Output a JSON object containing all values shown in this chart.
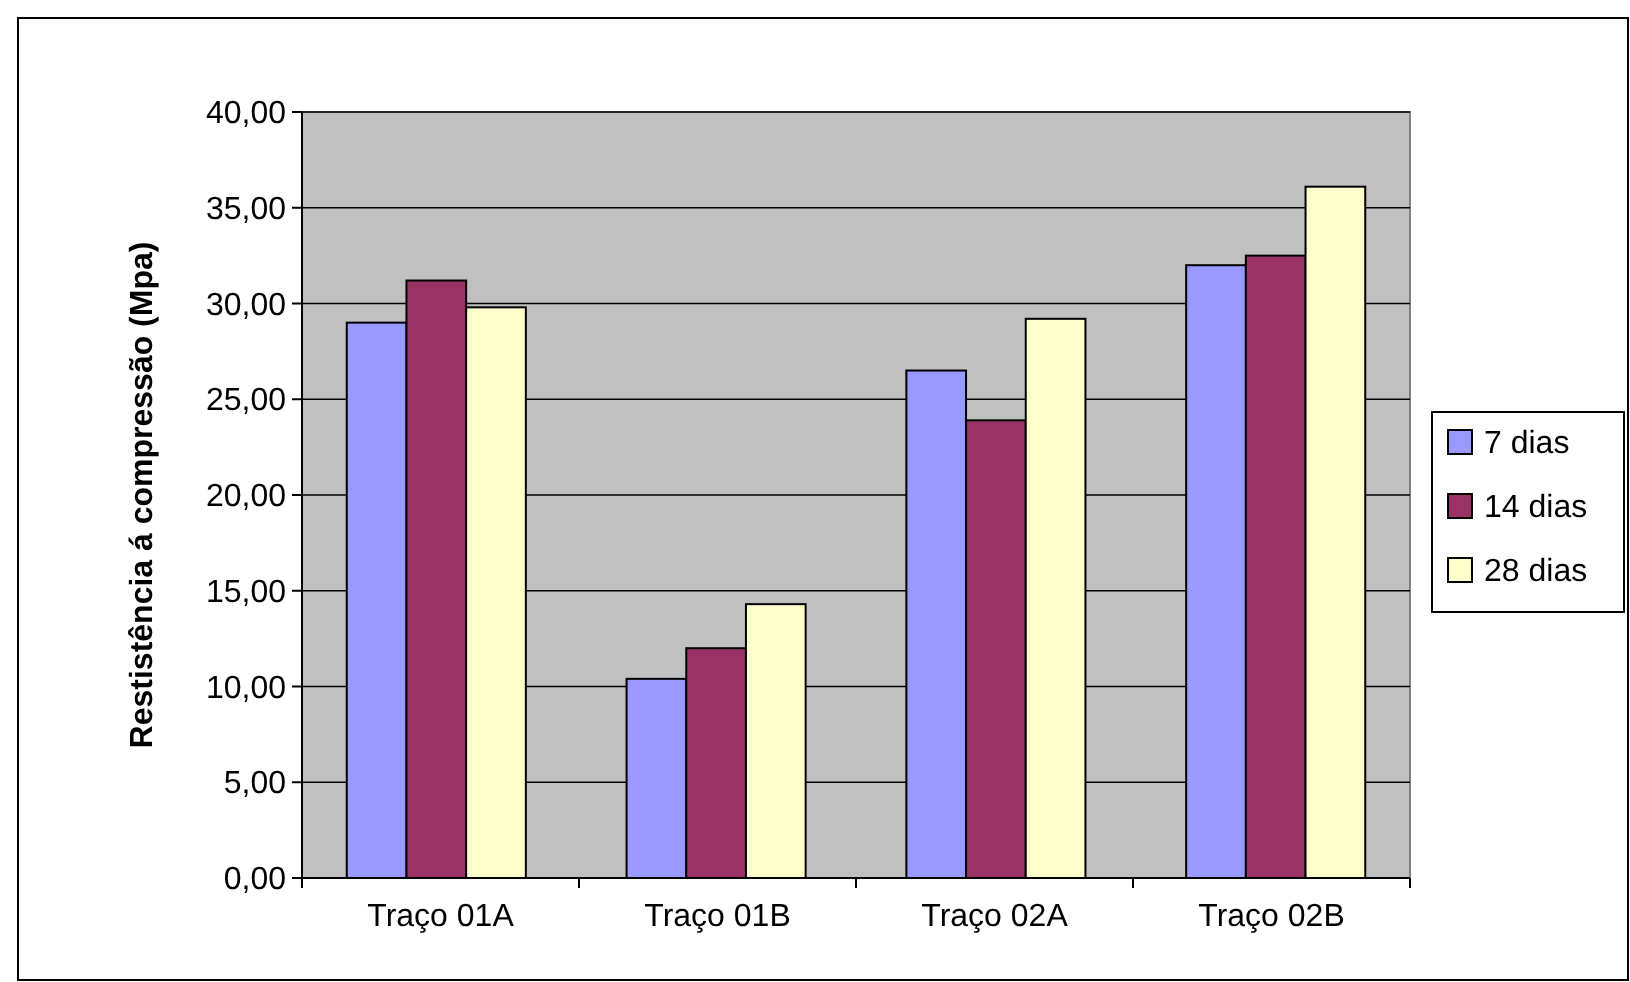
{
  "chart_data": {
    "type": "bar",
    "ylabel": "Restistência á compressão (Mpa)",
    "categories": [
      "Traço 01A",
      "Traço 01B",
      "Traço 02A",
      "Traço 02B"
    ],
    "series": [
      {
        "name": "7 dias",
        "color": "#9999ff",
        "values": [
          29.0,
          10.4,
          26.5,
          32.0
        ]
      },
      {
        "name": "14 dias",
        "color": "#993366",
        "values": [
          31.2,
          12.0,
          23.9,
          32.5
        ]
      },
      {
        "name": "28 dias",
        "color": "#ffffcc",
        "values": [
          29.8,
          14.3,
          29.2,
          36.1
        ]
      }
    ],
    "ylim": [
      0,
      40
    ],
    "yticks": [
      {
        "value": 0,
        "label": "0,00"
      },
      {
        "value": 5,
        "label": "5,00"
      },
      {
        "value": 10,
        "label": "10,00"
      },
      {
        "value": 15,
        "label": "15,00"
      },
      {
        "value": 20,
        "label": "20,00"
      },
      {
        "value": 25,
        "label": "25,00"
      },
      {
        "value": 30,
        "label": "30,00"
      },
      {
        "value": 35,
        "label": "35,00"
      },
      {
        "value": 40,
        "label": "40,00"
      }
    ],
    "grid": "y",
    "legend": "right"
  }
}
